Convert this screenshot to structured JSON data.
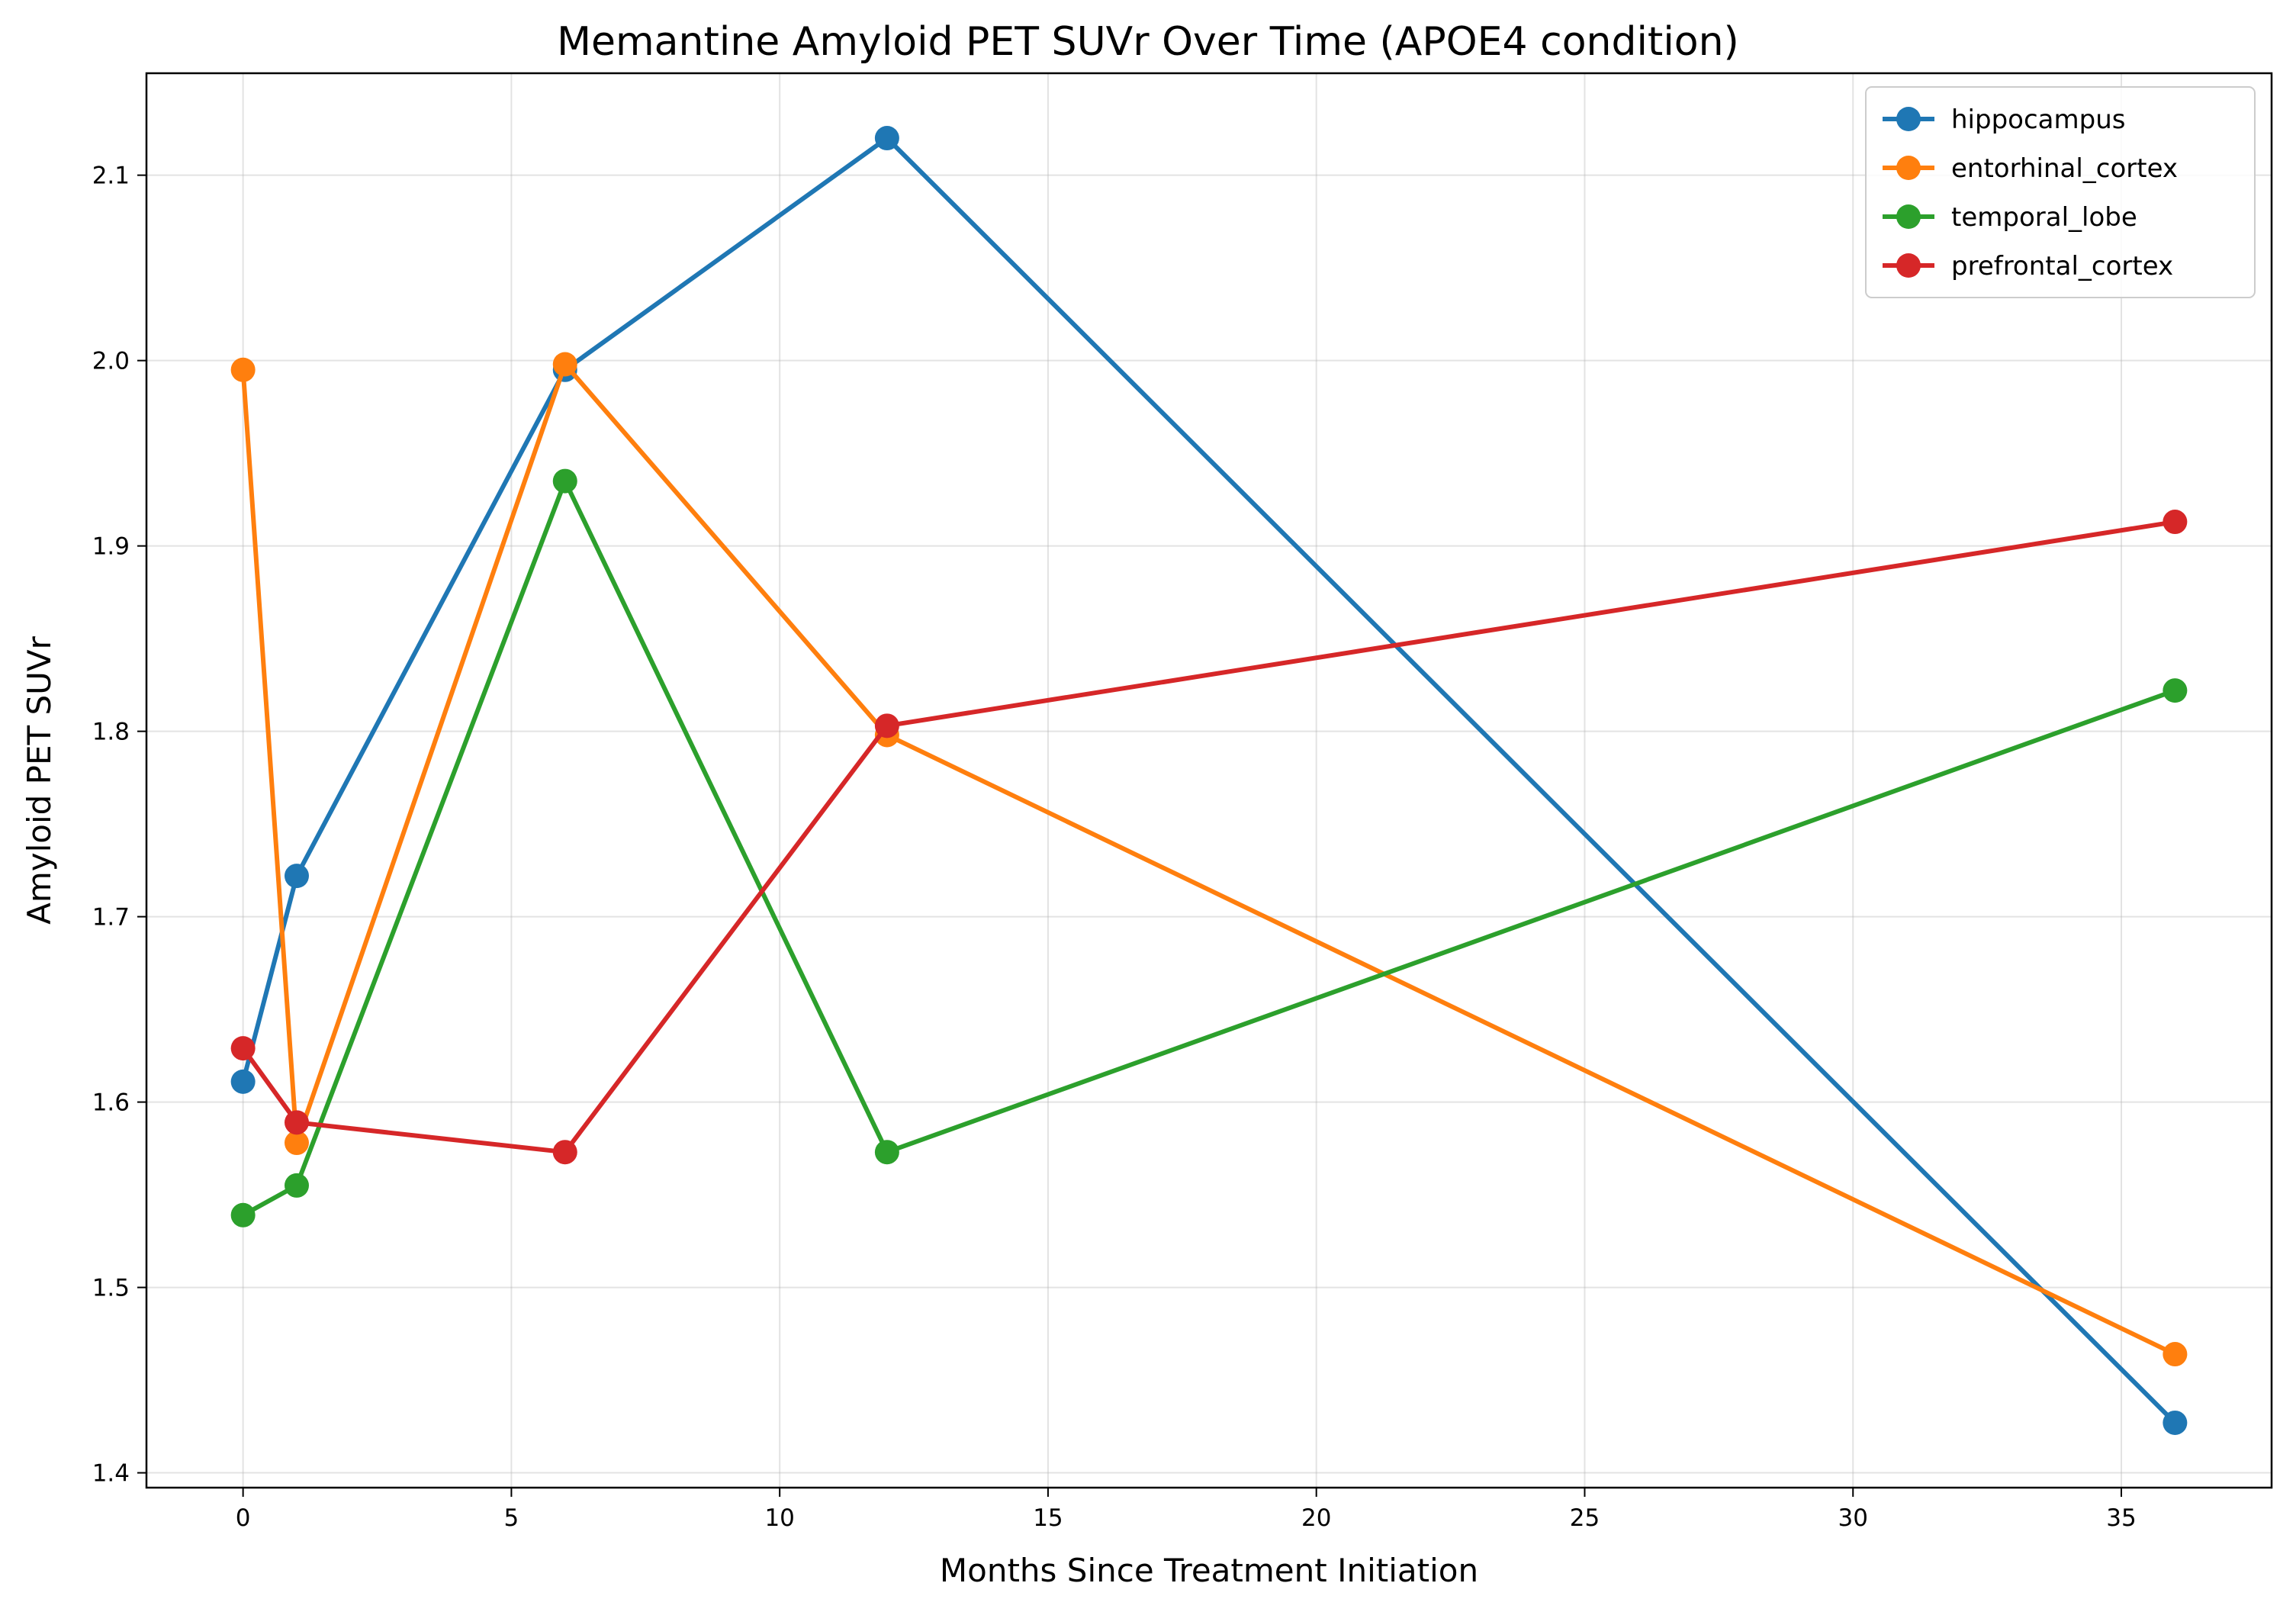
{
  "chart_data": {
    "type": "line",
    "title": "Memantine Amyloid PET SUVr Over Time (APOE4 condition)",
    "xlabel": "Months Since Treatment Initiation",
    "ylabel": "Amyloid PET SUVr",
    "xlim": [
      -1.8,
      37.8
    ],
    "ylim": [
      1.392,
      2.155
    ],
    "xticks": [
      0,
      5,
      10,
      15,
      20,
      25,
      30,
      35
    ],
    "yticks": [
      1.4,
      1.5,
      1.6,
      1.7,
      1.8,
      1.9,
      2.0,
      2.1
    ],
    "ytick_labels": [
      "1.4",
      "1.5",
      "1.6",
      "1.7",
      "1.8",
      "1.9",
      "2.0",
      "2.1"
    ],
    "grid": true,
    "legend_position": "top-right",
    "x": [
      0,
      1,
      6,
      12,
      36
    ],
    "series": [
      {
        "name": "hippocampus",
        "color": "#1f77b4",
        "values": [
          1.611,
          1.722,
          1.995,
          2.12,
          1.427
        ]
      },
      {
        "name": "entorhinal_cortex",
        "color": "#ff7f0e",
        "values": [
          1.995,
          1.578,
          1.998,
          1.798,
          1.464
        ]
      },
      {
        "name": "temporal_lobe",
        "color": "#2ca02c",
        "values": [
          1.539,
          1.555,
          1.935,
          1.573,
          1.822
        ]
      },
      {
        "name": "prefrontal_cortex",
        "color": "#d62728",
        "values": [
          1.629,
          1.589,
          1.573,
          1.803,
          1.913
        ]
      }
    ]
  }
}
